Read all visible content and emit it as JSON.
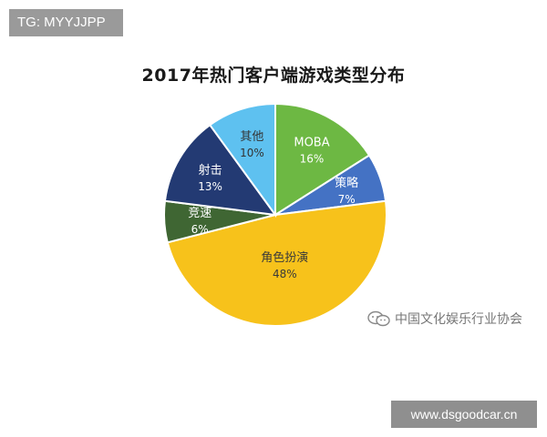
{
  "tag_text": "TG: MYYJJPP",
  "watermark_text": "中国文化娱乐行业协会",
  "site_text": "www.dsgoodcar.cn",
  "chart_data": {
    "type": "pie",
    "title": "2017年热门客户端游戏类型分布",
    "unit": "%",
    "slices": [
      {
        "label": "MOBA",
        "value": 16,
        "display": "16%",
        "color": "#6db843"
      },
      {
        "label": "策略",
        "value": 7,
        "display": "7%",
        "color": "#4472c4"
      },
      {
        "label": "角色扮演",
        "value": 48,
        "display": "48%",
        "color": "#f7c21b"
      },
      {
        "label": "竞速",
        "value": 6,
        "display": "6%",
        "color": "#3f6633"
      },
      {
        "label": "射击",
        "value": 13,
        "display": "13%",
        "color": "#233a73"
      },
      {
        "label": "其他",
        "value": 10,
        "display": "10%",
        "color": "#5ec1f0"
      }
    ]
  }
}
